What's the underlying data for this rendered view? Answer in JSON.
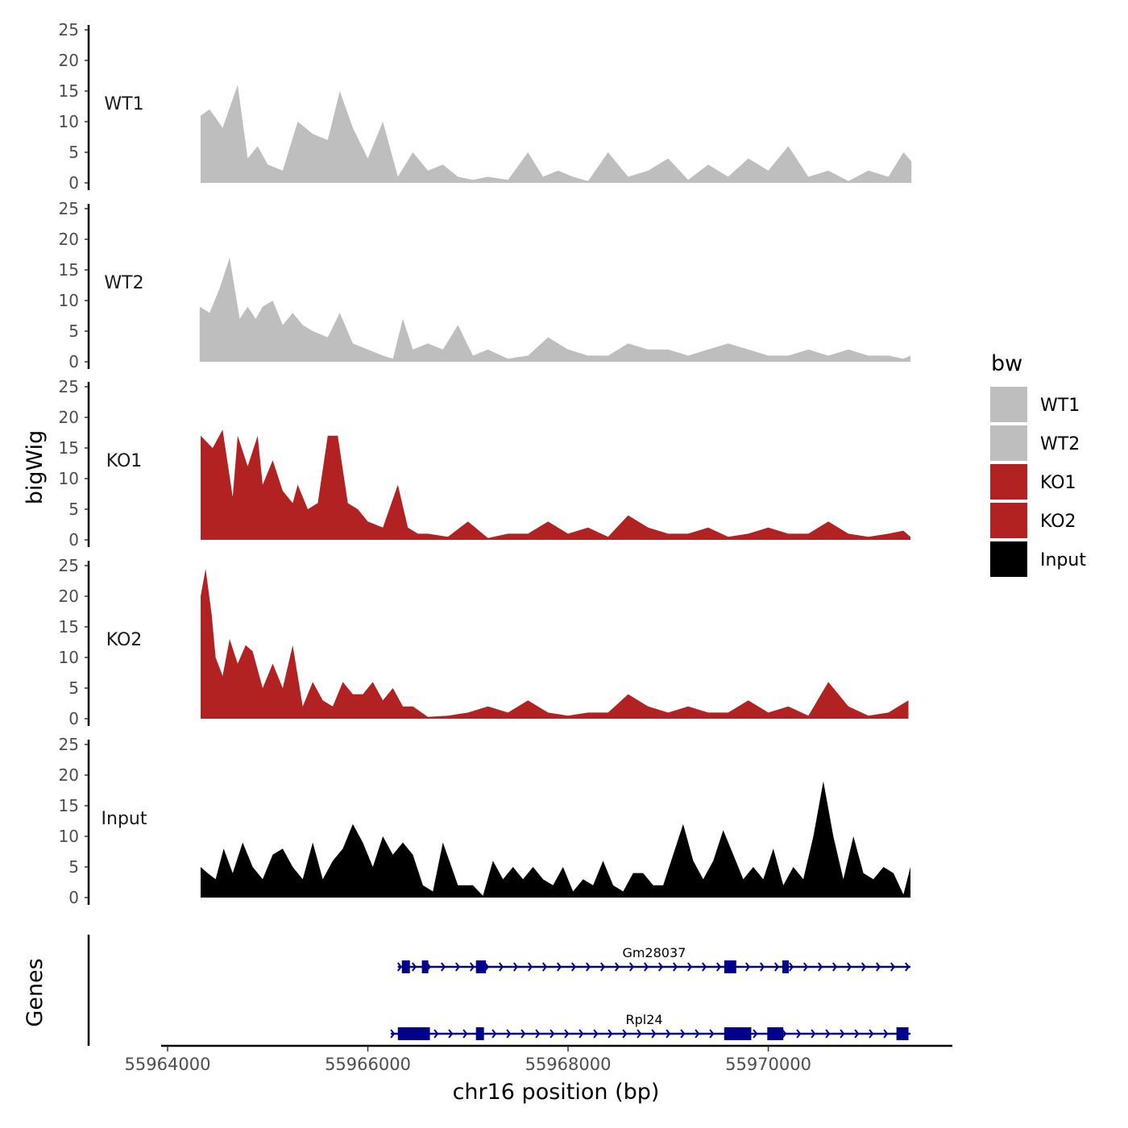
{
  "chart_data": {
    "type": "area",
    "xlabel": "chr16 position (bp)",
    "ylabel": "bigWig",
    "genes_label": "Genes",
    "xlim": [
      55963950,
      55971900
    ],
    "ylim": [
      0,
      25
    ],
    "y_ticks": [
      "0",
      "5",
      "10",
      "15",
      "20",
      "25"
    ],
    "x_ticks": [
      {
        "value": 55964000,
        "label": "55964000"
      },
      {
        "value": 55966000,
        "label": "55966000"
      },
      {
        "value": 55968000,
        "label": "55968000"
      },
      {
        "value": 55970000,
        "label": "55970000"
      }
    ],
    "legend_title": "bw",
    "series": [
      {
        "name": "WT1",
        "color": "#BEBEBE",
        "x": [
          55964330,
          55964420,
          55964550,
          55964700,
          55964800,
          55964900,
          55965000,
          55965150,
          55965300,
          55965450,
          55965600,
          55965720,
          55965850,
          55966000,
          55966150,
          55966300,
          55966450,
          55966600,
          55966750,
          55966900,
          55967050,
          55967200,
          55967400,
          55967600,
          55967750,
          55967900,
          55968050,
          55968200,
          55968400,
          55968600,
          55968800,
          55969000,
          55969200,
          55969400,
          55969600,
          55969800,
          55970000,
          55970200,
          55970400,
          55970600,
          55970800,
          55971000,
          55971200,
          55971350,
          55971430
        ],
        "values": [
          11,
          12,
          9,
          16,
          4,
          6,
          3,
          2,
          10,
          8,
          7,
          15,
          9,
          4,
          10,
          1,
          5,
          2,
          3,
          1,
          0.5,
          1,
          0.5,
          5,
          1,
          2,
          1,
          0.3,
          5,
          1,
          2,
          4,
          0.5,
          3,
          1,
          4,
          2,
          6,
          1,
          2,
          0.3,
          2,
          1,
          5,
          3.5
        ]
      },
      {
        "name": "WT2",
        "color": "#BEBEBE",
        "x": [
          55964320,
          55964420,
          55964520,
          55964620,
          55964720,
          55964800,
          55964880,
          55964950,
          55965050,
          55965150,
          55965250,
          55965350,
          55965450,
          55965600,
          55965720,
          55965850,
          55966000,
          55966150,
          55966250,
          55966350,
          55966450,
          55966600,
          55966750,
          55966900,
          55967050,
          55967200,
          55967400,
          55967600,
          55967800,
          55968000,
          55968200,
          55968400,
          55968600,
          55968800,
          55969000,
          55969200,
          55969400,
          55969600,
          55969800,
          55970000,
          55970200,
          55970400,
          55970600,
          55970800,
          55971000,
          55971200,
          55971350,
          55971420
        ],
        "values": [
          9,
          8,
          12,
          17,
          7,
          9,
          7,
          9,
          10,
          6,
          8,
          6,
          5,
          4,
          8,
          3,
          2,
          1,
          0.5,
          7,
          2,
          3,
          2,
          6,
          1,
          2,
          0.5,
          1,
          4,
          2,
          1,
          1,
          3,
          2,
          2,
          1,
          2,
          3,
          2,
          1,
          1,
          2,
          1,
          2,
          1,
          1,
          0.5,
          1
        ]
      },
      {
        "name": "KO1",
        "color": "#B22222",
        "x": [
          55964330,
          55964450,
          55964550,
          55964650,
          55964700,
          55964800,
          55964900,
          55964950,
          55965050,
          55965150,
          55965250,
          55965300,
          55965400,
          55965500,
          55965600,
          55965700,
          55965800,
          55965900,
          55966000,
          55966150,
          55966300,
          55966400,
          55966500,
          55966600,
          55966800,
          55967000,
          55967200,
          55967400,
          55967600,
          55967800,
          55968000,
          55968200,
          55968400,
          55968600,
          55968800,
          55969000,
          55969200,
          55969400,
          55969600,
          55969800,
          55970000,
          55970200,
          55970400,
          55970600,
          55970800,
          55971000,
          55971200,
          55971350,
          55971420
        ],
        "values": [
          17,
          15,
          18,
          7,
          17,
          12,
          17,
          9,
          13,
          8,
          6,
          9,
          5,
          6,
          17,
          17,
          6,
          5,
          3,
          2,
          9,
          2,
          1,
          1,
          0.5,
          3,
          0.3,
          1,
          1,
          3,
          1,
          2,
          0.5,
          4,
          2,
          1,
          1,
          2,
          0.5,
          1,
          2,
          1,
          1,
          3,
          1,
          0.5,
          1,
          1.5,
          0.5
        ]
      },
      {
        "name": "KO2",
        "color": "#B22222",
        "x": [
          55964330,
          55964380,
          55964440,
          55964480,
          55964550,
          55964620,
          55964700,
          55964780,
          55964850,
          55964950,
          55965050,
          55965150,
          55965250,
          55965350,
          55965450,
          55965550,
          55965650,
          55965750,
          55965850,
          55965950,
          55966050,
          55966150,
          55966250,
          55966350,
          55966450,
          55966600,
          55966800,
          55967000,
          55967200,
          55967400,
          55967600,
          55967800,
          55968000,
          55968200,
          55968400,
          55968600,
          55968800,
          55969000,
          55969200,
          55969400,
          55969600,
          55969800,
          55970000,
          55970200,
          55970400,
          55970600,
          55970800,
          55971000,
          55971200,
          55971300,
          55971400
        ],
        "values": [
          20,
          24.5,
          17,
          10,
          7,
          13,
          9,
          12,
          11,
          5,
          9,
          5,
          12,
          2,
          6,
          3,
          2,
          6,
          4,
          4,
          6,
          3,
          5,
          2,
          2,
          0.3,
          0.5,
          1,
          2,
          1,
          3,
          1,
          0.5,
          1,
          1,
          4,
          2,
          1,
          2,
          1,
          1,
          3,
          1,
          2,
          0.5,
          6,
          2,
          0.5,
          1,
          2,
          3
        ]
      },
      {
        "name": "Input",
        "color": "#000000",
        "x": [
          55964330,
          55964400,
          55964480,
          55964560,
          55964650,
          55964750,
          55964850,
          55964950,
          55965050,
          55965150,
          55965250,
          55965350,
          55965450,
          55965550,
          55965650,
          55965750,
          55965850,
          55965950,
          55966050,
          55966150,
          55966250,
          55966350,
          55966450,
          55966550,
          55966650,
          55966750,
          55966900,
          55967050,
          55967150,
          55967250,
          55967350,
          55967450,
          55967550,
          55967650,
          55967750,
          55967850,
          55967950,
          55968050,
          55968150,
          55968250,
          55968350,
          55968450,
          55968550,
          55968650,
          55968750,
          55968850,
          55968950,
          55969050,
          55969150,
          55969250,
          55969350,
          55969450,
          55969550,
          55969650,
          55969750,
          55969850,
          55969950,
          55970050,
          55970150,
          55970250,
          55970350,
          55970450,
          55970550,
          55970650,
          55970750,
          55970850,
          55970950,
          55971050,
          55971150,
          55971250,
          55971350,
          55971420
        ],
        "values": [
          5,
          4,
          3,
          8,
          4,
          9,
          5,
          3,
          7,
          8,
          5,
          3,
          9,
          3,
          6,
          8,
          12,
          9,
          5,
          10,
          7,
          9,
          7,
          2,
          1,
          9,
          2,
          2,
          0.3,
          6,
          3,
          5,
          3,
          5,
          3,
          2,
          5,
          1,
          3,
          2,
          6,
          2,
          1,
          4,
          4,
          2,
          2,
          7,
          12,
          6,
          3,
          6,
          11,
          7,
          3,
          5,
          3,
          8,
          2,
          5,
          3,
          10,
          19,
          10,
          3,
          10,
          4,
          3,
          5,
          4,
          0.5,
          5
        ]
      }
    ],
    "genes": [
      {
        "name": "Gm28037",
        "start": 55966300,
        "end": 55971420,
        "exons": [
          [
            55966340,
            55966420
          ],
          [
            55966540,
            55966600
          ],
          [
            55967080,
            55967180
          ],
          [
            55969560,
            55969680
          ],
          [
            55970140,
            55970200
          ]
        ]
      },
      {
        "name": "Rpl24",
        "start": 55966230,
        "end": 55971420,
        "exons": [
          [
            55966300,
            55966620
          ],
          [
            55967080,
            55967160
          ],
          [
            55969560,
            55969830
          ],
          [
            55969990,
            55970150
          ],
          [
            55971280,
            55971400
          ]
        ]
      }
    ]
  }
}
